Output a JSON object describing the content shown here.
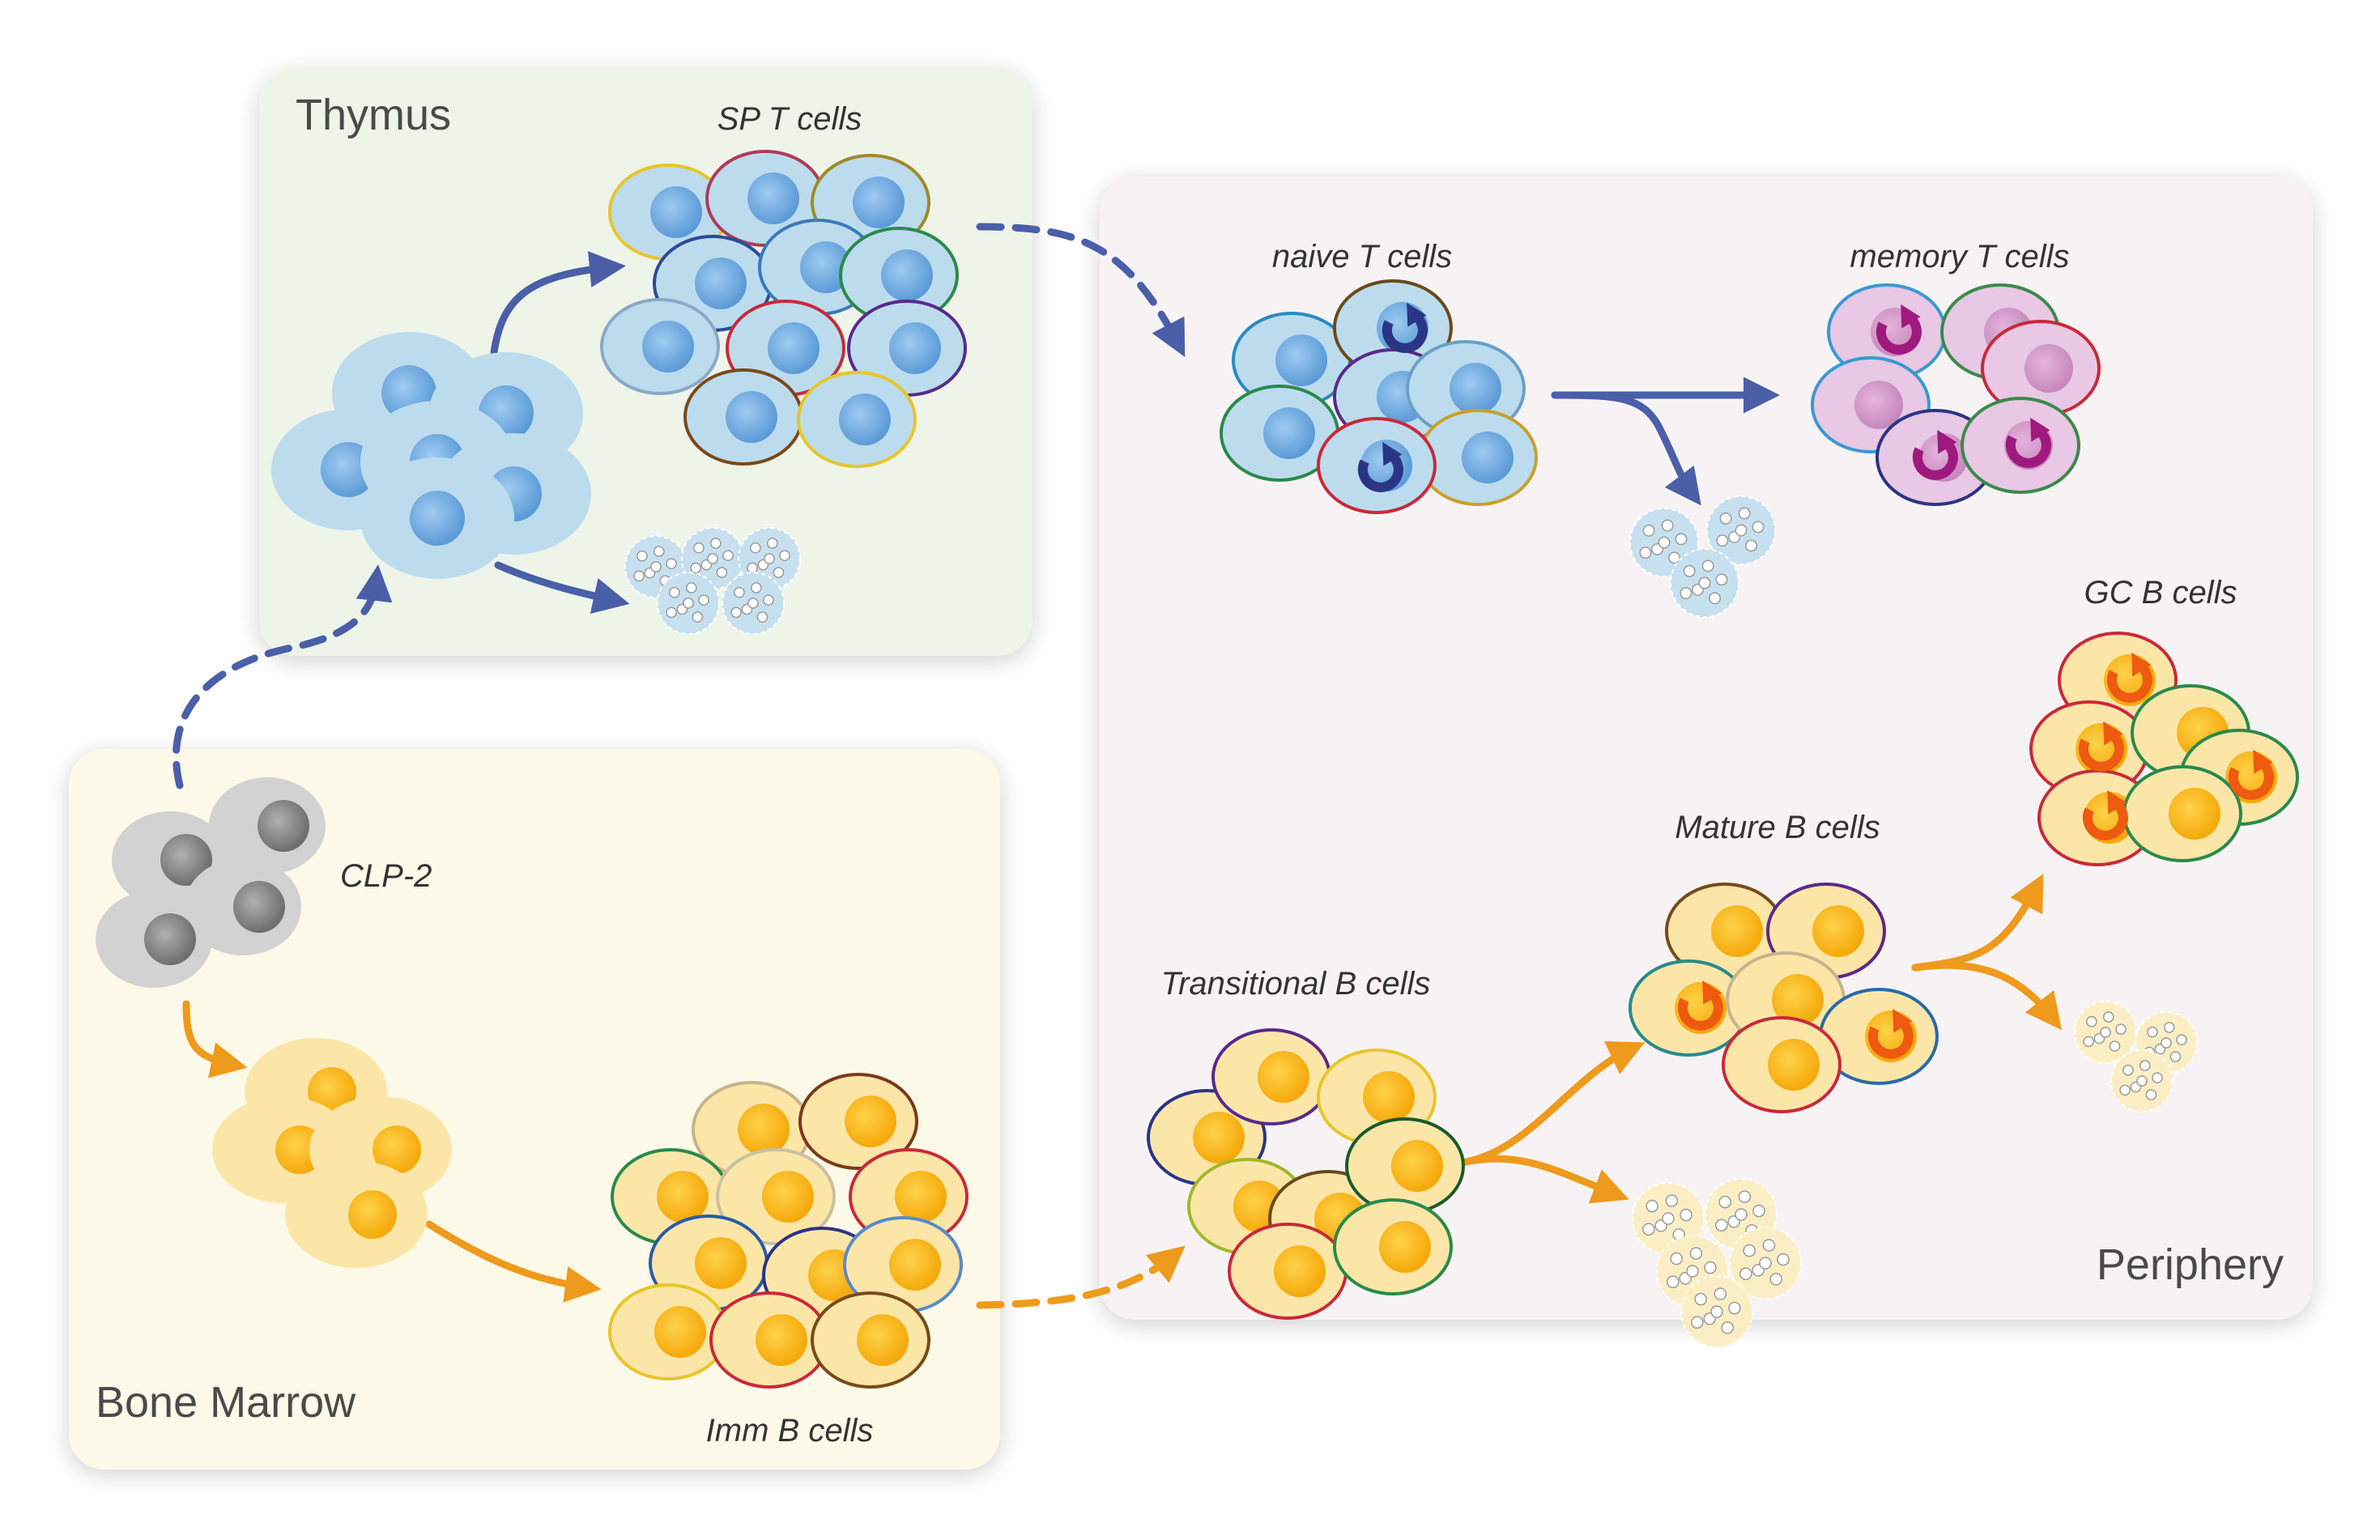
{
  "regions": {
    "thymus": "Thymus",
    "bone_marrow": "Bone Marrow",
    "periphery": "Periphery"
  },
  "cell_populations": {
    "sp_t": "SP T cells",
    "naive_t": "naive T cells",
    "memory_t": "memory T cells",
    "gc_b": "GC B cells",
    "mature_b": "Mature B cells",
    "transitional_b": "Transitional B cells",
    "imm_b": "Imm B cells",
    "clp": "CLP-2"
  },
  "colors": {
    "thymus_bg": "#eef4e8",
    "bone_marrow_bg": "#fdf9e8",
    "periphery_bg": "#f7f3f5",
    "t_lineage_arrow": "#4a5fa8",
    "b_lineage_arrow": "#ee9a1c",
    "t_cell_fill": "#bcdcee",
    "t_cell_nucleus": "#6fa9df",
    "memory_cell_fill": "#e8c8e4",
    "memory_cell_nucleus": "#d9a0cf",
    "b_cell_fill": "#fbe6a8",
    "b_cell_nucleus": "#f8b81c",
    "clp_fill": "#d2d2d2",
    "clp_nucleus": "#888888",
    "proliferation_t": "#2a3585",
    "proliferation_memory": "#a0197e",
    "proliferation_b": "#ee5a10"
  },
  "icons": [
    "proliferation-arrow-icon",
    "apoptotic-cell-icon"
  ]
}
